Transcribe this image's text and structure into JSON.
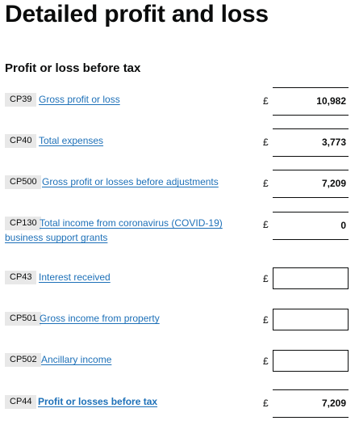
{
  "page": {
    "title": "Detailed profit and loss",
    "section_title": "Profit or loss before tax",
    "currency_symbol": "£"
  },
  "rows": [
    {
      "code": "CP39",
      "label": "Gross profit or loss",
      "value": "10,982"
    },
    {
      "code": "CP40",
      "label": "Total expenses",
      "value": "3,773"
    },
    {
      "code": "CP500",
      "label": "Gross profit or losses before adjustments",
      "value": "7,209"
    },
    {
      "code": "CP130",
      "label": "Total income from coronavirus (COVID-19) business support grants",
      "value": "0"
    },
    {
      "code": "CP43",
      "label": "Interest received",
      "value": ""
    },
    {
      "code": "CP501",
      "label": "Gross income from property",
      "value": ""
    },
    {
      "code": "CP502",
      "label": "Ancillary income",
      "value": ""
    },
    {
      "code": "CP44",
      "label": "Profit or losses before tax",
      "value": "7,209"
    }
  ]
}
